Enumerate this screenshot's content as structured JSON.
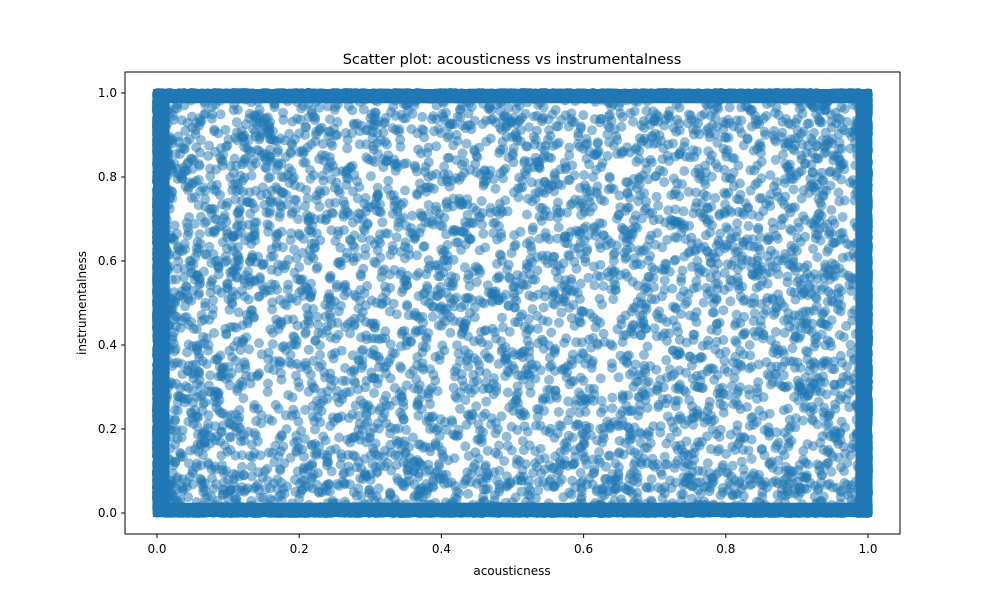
{
  "chart_data": {
    "type": "scatter",
    "title": "Scatter plot: acousticness vs instrumentalness",
    "xlabel": "acousticness",
    "ylabel": "instrumentalness",
    "xlim": [
      -0.045,
      1.045
    ],
    "ylim": [
      -0.05,
      1.05
    ],
    "xticks": [
      "0.0",
      "0.2",
      "0.4",
      "0.6",
      "0.8",
      "1.0"
    ],
    "yticks": [
      "0.0",
      "0.2",
      "0.4",
      "0.6",
      "0.8",
      "1.0"
    ],
    "grid": false,
    "legend": "none",
    "marker_color": "#1f77b4",
    "marker_alpha": 0.5,
    "series": [
      {
        "x_range": [
          0.0,
          1.0
        ],
        "y_range": [
          0.0,
          1.0
        ],
        "dense_regions": [
          "x near 0.0",
          "x near 1.0",
          "y near 0.0",
          "y near 1.0"
        ],
        "sample_points": [
          [
            0.0,
            0.0
          ],
          [
            0.0,
            1.0
          ],
          [
            1.0,
            0.0
          ],
          [
            1.0,
            1.0
          ],
          [
            0.12,
            0.83
          ],
          [
            0.3,
            0.65
          ],
          [
            0.45,
            0.55
          ],
          [
            0.56,
            0.52
          ],
          [
            0.62,
            0.4
          ],
          [
            0.76,
            0.6
          ],
          [
            0.87,
            0.33
          ],
          [
            0.92,
            0.69
          ],
          [
            0.2,
            0.3
          ],
          [
            0.36,
            0.18
          ],
          [
            0.5,
            0.35
          ],
          [
            0.69,
            0.25
          ],
          [
            0.58,
            0.87
          ],
          [
            0.41,
            0.92
          ],
          [
            0.25,
            0.96
          ],
          [
            0.77,
            0.95
          ]
        ]
      }
    ]
  }
}
